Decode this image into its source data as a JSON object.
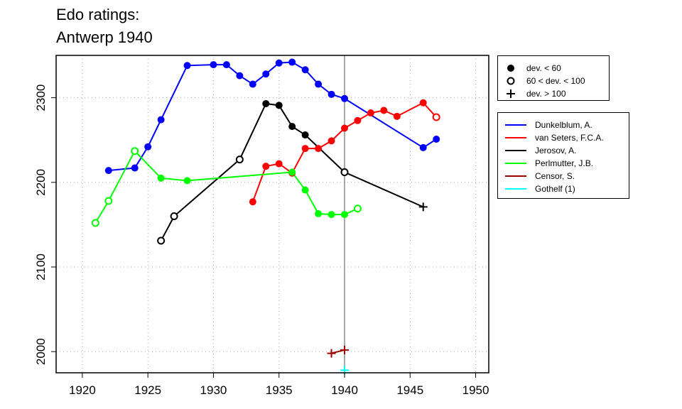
{
  "title": [
    "Edo ratings:",
    "Antwerp 1940"
  ],
  "legends": {
    "symbols": [
      {
        "marker": "filled-circle",
        "label": "dev. < 60"
      },
      {
        "marker": "open-circle",
        "label": "60 < dev. < 100"
      },
      {
        "marker": "plus",
        "label": "dev. > 100"
      }
    ],
    "series": [
      {
        "label": "Dunkelblum, A.",
        "color": "#0000ff"
      },
      {
        "label": "van Seters, F.C.A.",
        "color": "#ff0000"
      },
      {
        "label": "Jerosov, A.",
        "color": "#000000"
      },
      {
        "label": "Perlmutter, J.B.",
        "color": "#00ff00"
      },
      {
        "label": "Censor, S.",
        "color": "#a00000"
      },
      {
        "label": "Gothelf (1)",
        "color": "#00ffff"
      }
    ]
  },
  "chart_data": {
    "type": "line",
    "xlim": [
      1918,
      1951
    ],
    "ylim": [
      1975,
      2350
    ],
    "x_ticks": [
      1920,
      1925,
      1930,
      1935,
      1940,
      1945,
      1950
    ],
    "y_ticks": [
      2000,
      2100,
      2200,
      2300
    ],
    "grid": true,
    "reference_line_x": 1940,
    "series": [
      {
        "name": "Dunkelblum, A.",
        "color": "#0000ff",
        "points": [
          [
            1922,
            2214,
            "filled"
          ],
          [
            1924,
            2217,
            "filled"
          ],
          [
            1925,
            2242,
            "filled"
          ],
          [
            1926,
            2274,
            "filled"
          ],
          [
            1928,
            2338,
            "filled"
          ],
          [
            1930,
            2339,
            "filled"
          ],
          [
            1931,
            2339,
            "filled"
          ],
          [
            1932,
            2326,
            "filled"
          ],
          [
            1933,
            2316,
            "filled"
          ],
          [
            1934,
            2328,
            "filled"
          ],
          [
            1935,
            2341,
            "filled"
          ],
          [
            1936,
            2342,
            "filled"
          ],
          [
            1937,
            2333,
            "filled"
          ],
          [
            1938,
            2316,
            "filled"
          ],
          [
            1939,
            2304,
            "filled"
          ],
          [
            1940,
            2299,
            "filled"
          ],
          [
            1946,
            2241,
            "filled"
          ],
          [
            1947,
            2251,
            "filled"
          ]
        ]
      },
      {
        "name": "van Seters, F.C.A.",
        "color": "#ff0000",
        "points": [
          [
            1933,
            2177,
            "filled"
          ],
          [
            1934,
            2219,
            "filled"
          ],
          [
            1935,
            2222,
            "filled"
          ],
          [
            1936,
            2211,
            "filled"
          ],
          [
            1937,
            2240,
            "filled"
          ],
          [
            1938,
            2240,
            "filled"
          ],
          [
            1939,
            2249,
            "filled"
          ],
          [
            1940,
            2264,
            "filled"
          ],
          [
            1941,
            2273,
            "filled"
          ],
          [
            1942,
            2282,
            "filled"
          ],
          [
            1943,
            2285,
            "filled"
          ],
          [
            1944,
            2278,
            "filled"
          ],
          [
            1946,
            2294,
            "filled"
          ],
          [
            1947,
            2277,
            "open"
          ]
        ]
      },
      {
        "name": "Jerosov, A.",
        "color": "#000000",
        "points": [
          [
            1926,
            2131,
            "open"
          ],
          [
            1927,
            2160,
            "open"
          ],
          [
            1932,
            2227,
            "open"
          ],
          [
            1934,
            2293,
            "filled"
          ],
          [
            1935,
            2291,
            "filled"
          ],
          [
            1936,
            2266,
            "filled"
          ],
          [
            1937,
            2256,
            "filled"
          ],
          [
            1940,
            2212,
            "open"
          ],
          [
            1946,
            2171,
            "plus"
          ]
        ]
      },
      {
        "name": "Perlmutter, J.B.",
        "color": "#00ff00",
        "points": [
          [
            1921,
            2152,
            "open"
          ],
          [
            1922,
            2178,
            "open"
          ],
          [
            1924,
            2237,
            "open"
          ],
          [
            1926,
            2205,
            "filled"
          ],
          [
            1928,
            2202,
            "filled"
          ],
          [
            1936,
            2212,
            "filled"
          ],
          [
            1937,
            2191,
            "filled"
          ],
          [
            1938,
            2163,
            "filled"
          ],
          [
            1939,
            2162,
            "filled"
          ],
          [
            1940,
            2162,
            "filled"
          ],
          [
            1941,
            2169,
            "open"
          ]
        ]
      },
      {
        "name": "Censor, S.",
        "color": "#a00000",
        "points": [
          [
            1939,
            1998,
            "plus"
          ],
          [
            1940,
            2002,
            "plus"
          ]
        ]
      },
      {
        "name": "Gothelf (1)",
        "color": "#00ffff",
        "points": [
          [
            1940,
            1978,
            "plus"
          ]
        ]
      }
    ]
  }
}
